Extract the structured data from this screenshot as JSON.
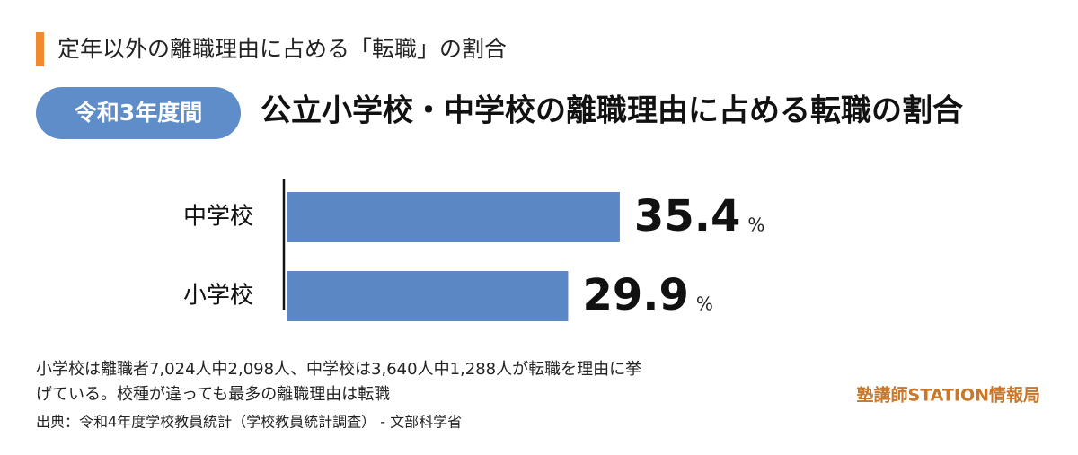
{
  "chart_data": {
    "type": "bar",
    "orientation": "horizontal",
    "header": "定年以外の離職理由に占める「転職」の割合",
    "badge": "令和3年度間",
    "title": "公立小学校・中学校の離職理由に占める転職の割合",
    "categories": [
      "中学校",
      "小学校"
    ],
    "values": [
      35.4,
      29.9
    ],
    "unit": "%",
    "color": "#5b88c5",
    "notes": [
      "小学校は離職者7,024人中2,098人、中学校は3,640人中1,288人が転職を理由に挙",
      "げている。校種が違っても最多の離職理由は転職"
    ],
    "source": "出典：令和4年度学校教員統計（学校教員統計調査） - 文部科学省",
    "logo": "塾講師STATION情報局"
  }
}
